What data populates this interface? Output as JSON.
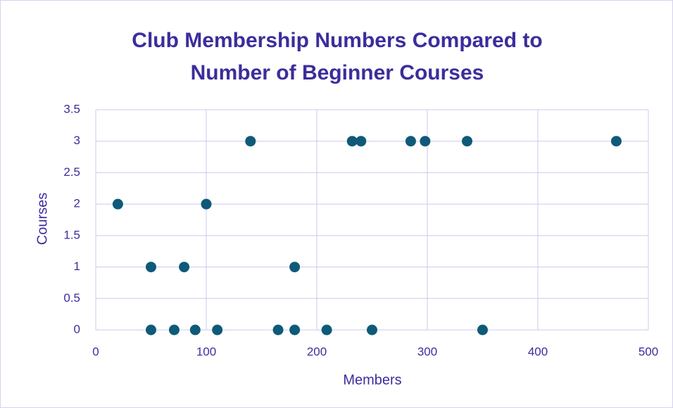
{
  "chart_data": {
    "type": "scatter",
    "title": "Club Membership Numbers Compared to Number of Beginner Courses",
    "x_label": "Members",
    "y_label": "Courses",
    "x": [
      20,
      50,
      80,
      100,
      140,
      180,
      232,
      240,
      285,
      298,
      336,
      471,
      50,
      71,
      90,
      110,
      165,
      180,
      209,
      250,
      350
    ],
    "series": [
      {
        "name": "Courses",
        "color": "#0e5a78",
        "values": [
          2,
          1,
          1,
          2,
          3,
          1,
          3,
          3,
          3,
          3,
          3,
          3,
          0,
          0,
          0,
          0,
          0,
          0,
          0,
          0,
          0
        ]
      }
    ],
    "xlim": [
      0,
      500
    ],
    "xticks": [
      0,
      100,
      200,
      300,
      400,
      500
    ],
    "ylim": [
      0,
      3.5
    ],
    "yticks": [
      0,
      0.5,
      1,
      1.5,
      2,
      2.5,
      3,
      3.5
    ],
    "grid": true
  }
}
